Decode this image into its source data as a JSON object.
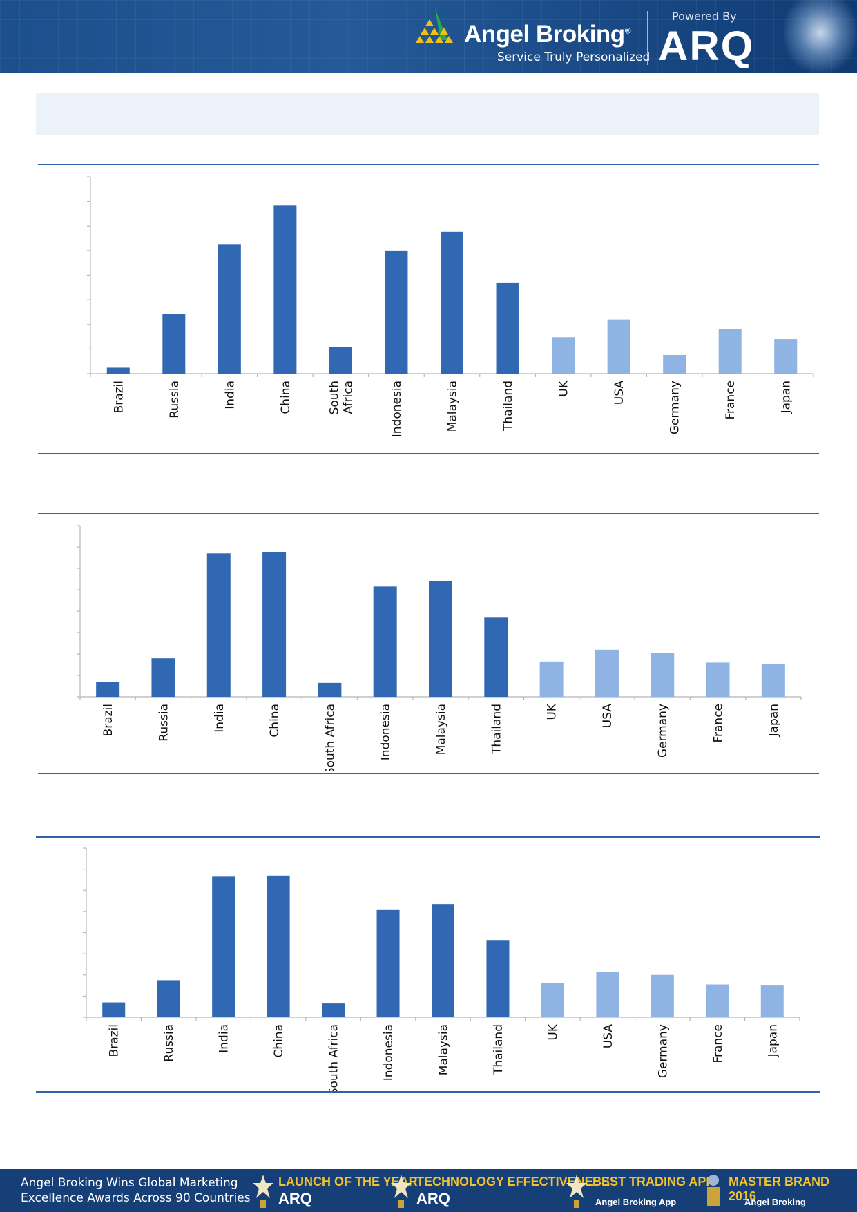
{
  "header": {
    "brand_name": "Angel Broking",
    "brand_reg": "®",
    "tagline": "Service Truly Personalized",
    "powered_by": "Powered By",
    "arq_logo": "ARQ",
    "colors": {
      "background": "#1f5494",
      "logo_green": "#2aa84a",
      "logo_yellow": "#f2c10f"
    }
  },
  "colors": {
    "primary_bar": "#3068b4",
    "secondary_bar": "#8fb3e3",
    "rule": "#2f63a8",
    "axis": "#b5b5b5",
    "blue_box": "#ecf2f9"
  },
  "chart_data": [
    {
      "type": "bar",
      "categories": [
        "Brazil",
        "Russia",
        "India",
        "China",
        "South Africa",
        "Indonesia",
        "Malaysia",
        "Thailand",
        "UK",
        "USA",
        "Germany",
        "France",
        "Japan"
      ],
      "values": [
        3,
        30.5,
        65.5,
        85.5,
        13.5,
        62.5,
        72,
        46,
        18.5,
        27.5,
        9.5,
        22.5,
        17.5
      ],
      "ylim": [
        0,
        100
      ],
      "grid": false
    },
    {
      "type": "bar",
      "categories": [
        "Brazil",
        "Russia",
        "India",
        "China",
        "South Africa",
        "Indonesia",
        "Malaysia",
        "Thailand",
        "UK",
        "USA",
        "Germany",
        "France",
        "Japan"
      ],
      "values": [
        7,
        18,
        67,
        67.5,
        6.5,
        51.5,
        54,
        37,
        16.5,
        22,
        20.5,
        16,
        15.5
      ],
      "ylim": [
        0,
        80
      ],
      "grid": false
    },
    {
      "type": "bar",
      "categories": [
        "Brazil",
        "Russia",
        "India",
        "China",
        "South Africa",
        "Indonesia",
        "Malaysia",
        "Thailand",
        "UK",
        "USA",
        "Germany",
        "France",
        "Japan"
      ],
      "values": [
        7,
        17.5,
        66.5,
        67,
        6.5,
        51,
        53.5,
        36.5,
        16,
        21.5,
        20,
        15.5,
        15
      ],
      "ylim": [
        0,
        80
      ],
      "grid": false
    }
  ],
  "footer": {
    "line1": "Angel Broking Wins Global Marketing",
    "line2": "Excellence Awards Across 90 Countries",
    "awards": [
      {
        "title": "LAUNCH OF THE YEAR",
        "subtitle": "ARQ"
      },
      {
        "title": "TECHNOLOGY EFFECTIVENESS",
        "subtitle": "ARQ"
      },
      {
        "title": "BEST TRADING APP",
        "subtitle": "Angel Broking App"
      },
      {
        "title": "MASTER BRAND 2016",
        "subtitle": "Angel Broking"
      }
    ]
  }
}
